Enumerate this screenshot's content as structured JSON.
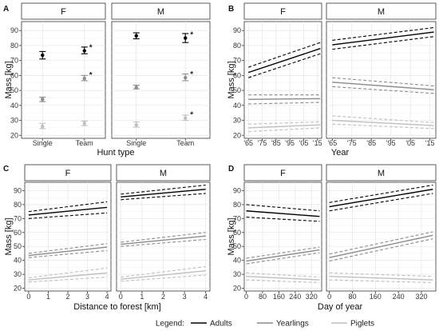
{
  "legend": {
    "title": "Legend:",
    "items": [
      {
        "label": "Adults",
        "color": "#000000"
      },
      {
        "label": "Yearlings",
        "color": "#8c8c8c"
      },
      {
        "label": "Piglets",
        "color": "#bfbfbf"
      }
    ]
  },
  "chart_data": [
    {
      "panel": "A",
      "type": "scatter",
      "facets": [
        "F",
        "M"
      ],
      "categories": [
        "Single",
        "Team"
      ],
      "xlabel": "Hunt type",
      "ylabel": "Mass [kg]",
      "ylim": [
        18,
        96
      ],
      "yticks": [
        20,
        30,
        40,
        50,
        60,
        70,
        80,
        90
      ],
      "grid": true,
      "series": [
        {
          "name": "Adults",
          "color": "#000000",
          "points": [
            {
              "facet": "F",
              "x": "Single",
              "y": 73.5,
              "lo": 71,
              "hi": 76,
              "sig": false
            },
            {
              "facet": "F",
              "x": "Team",
              "y": 76.5,
              "lo": 74.5,
              "hi": 79,
              "sig": true
            },
            {
              "facet": "M",
              "x": "Single",
              "y": 86.5,
              "lo": 84.5,
              "hi": 88.5,
              "sig": false
            },
            {
              "facet": "M",
              "x": "Team",
              "y": 85,
              "lo": 82,
              "hi": 88,
              "sig": true
            }
          ]
        },
        {
          "name": "Yearlings",
          "color": "#8c8c8c",
          "points": [
            {
              "facet": "F",
              "x": "Single",
              "y": 44,
              "lo": 42.5,
              "hi": 45.5,
              "sig": false
            },
            {
              "facet": "F",
              "x": "Team",
              "y": 58,
              "lo": 56.5,
              "hi": 60,
              "sig": true
            },
            {
              "facet": "M",
              "x": "Single",
              "y": 52,
              "lo": 51,
              "hi": 53.5,
              "sig": false
            },
            {
              "facet": "M",
              "x": "Team",
              "y": 58.5,
              "lo": 56.5,
              "hi": 61,
              "sig": true
            }
          ]
        },
        {
          "name": "Piglets",
          "color": "#bfbfbf",
          "points": [
            {
              "facet": "F",
              "x": "Single",
              "y": 26,
              "lo": 24.5,
              "hi": 28,
              "sig": false
            },
            {
              "facet": "F",
              "x": "Team",
              "y": 28,
              "lo": 26.5,
              "hi": 29.5,
              "sig": false
            },
            {
              "facet": "M",
              "x": "Single",
              "y": 27,
              "lo": 25.5,
              "hi": 29,
              "sig": false
            },
            {
              "facet": "M",
              "x": "Team",
              "y": 31.5,
              "lo": 30,
              "hi": 33.5,
              "sig": true
            }
          ]
        }
      ]
    },
    {
      "panel": "B",
      "type": "line",
      "facets": [
        "F",
        "M"
      ],
      "xlabel": "Year",
      "ylabel": "Mass [kg]",
      "xlim": [
        1962,
        2018
      ],
      "xticks": [
        1965,
        1975,
        1985,
        1995,
        2005,
        2015
      ],
      "xticklabels": [
        "'65",
        "'75",
        "'85",
        "'95",
        "'05",
        "'15"
      ],
      "ylim": [
        18,
        96
      ],
      "yticks": [
        20,
        30,
        40,
        50,
        60,
        70,
        80,
        90
      ],
      "grid": true,
      "series": [
        {
          "name": "Adults",
          "color": "#000000",
          "lines": [
            {
              "facet": "F",
              "x": [
                1965,
                2017
              ],
              "y": [
                62,
                78
              ],
              "lo": [
                58.5,
                74.5
              ],
              "hi": [
                65.5,
                82
              ]
            },
            {
              "facet": "M",
              "x": [
                1965,
                2017
              ],
              "y": [
                80.5,
                89
              ],
              "lo": [
                77.5,
                86
              ],
              "hi": [
                83.5,
                92
              ]
            }
          ]
        },
        {
          "name": "Yearlings",
          "color": "#8c8c8c",
          "lines": [
            {
              "facet": "F",
              "x": [
                1965,
                2017
              ],
              "y": [
                44,
                44.5
              ],
              "lo": [
                41,
                42
              ],
              "hi": [
                47,
                47
              ]
            },
            {
              "facet": "M",
              "x": [
                1965,
                2017
              ],
              "y": [
                55.5,
                50.5
              ],
              "lo": [
                52.5,
                48
              ],
              "hi": [
                58.5,
                53
              ]
            }
          ]
        },
        {
          "name": "Piglets",
          "color": "#bfbfbf",
          "lines": [
            {
              "facet": "F",
              "x": [
                1965,
                2017
              ],
              "y": [
                25,
                27
              ],
              "lo": [
                22.5,
                25
              ],
              "hi": [
                27.5,
                29
              ]
            },
            {
              "facet": "M",
              "x": [
                1965,
                2017
              ],
              "y": [
                30,
                26.5
              ],
              "lo": [
                27.5,
                24.5
              ],
              "hi": [
                33,
                28.5
              ]
            }
          ]
        }
      ]
    },
    {
      "panel": "C",
      "type": "line",
      "facets": [
        "F",
        "M"
      ],
      "xlabel": "Distance to forest [km]",
      "ylabel": "Mass [kg]",
      "xlim": [
        -0.2,
        4.2
      ],
      "xticks": [
        0,
        1,
        2,
        3,
        4
      ],
      "xticklabels": [
        "0",
        "1",
        "2",
        "3",
        "4"
      ],
      "ylim": [
        18,
        96
      ],
      "yticks": [
        20,
        30,
        40,
        50,
        60,
        70,
        80,
        90
      ],
      "grid": true,
      "series": [
        {
          "name": "Adults",
          "color": "#000000",
          "lines": [
            {
              "facet": "F",
              "x": [
                0,
                4
              ],
              "y": [
                72.5,
                78
              ],
              "lo": [
                70,
                74
              ],
              "hi": [
                75,
                82
              ]
            },
            {
              "facet": "M",
              "x": [
                0,
                4
              ],
              "y": [
                85.5,
                91
              ],
              "lo": [
                83.5,
                88
              ],
              "hi": [
                87.5,
                94
              ]
            }
          ]
        },
        {
          "name": "Yearlings",
          "color": "#8c8c8c",
          "lines": [
            {
              "facet": "F",
              "x": [
                0,
                4
              ],
              "y": [
                43.5,
                49.5
              ],
              "lo": [
                42,
                47
              ],
              "hi": [
                45,
                52
              ]
            },
            {
              "facet": "M",
              "x": [
                0,
                4
              ],
              "y": [
                51.5,
                57.5
              ],
              "lo": [
                50,
                55
              ],
              "hi": [
                53,
                60
              ]
            }
          ]
        },
        {
          "name": "Piglets",
          "color": "#bfbfbf",
          "lines": [
            {
              "facet": "F",
              "x": [
                0,
                4
              ],
              "y": [
                26,
                31
              ],
              "lo": [
                24.5,
                28
              ],
              "hi": [
                27.5,
                34.5
              ]
            },
            {
              "facet": "M",
              "x": [
                0,
                4
              ],
              "y": [
                26.5,
                32.5
              ],
              "lo": [
                25,
                29.5
              ],
              "hi": [
                28,
                35.5
              ]
            }
          ]
        }
      ]
    },
    {
      "panel": "D",
      "type": "line",
      "facets": [
        "F",
        "M"
      ],
      "xlabel": "Day of year",
      "ylabel": "Mass [kg]",
      "xlim": [
        -10,
        370
      ],
      "xticks": [
        0,
        80,
        160,
        240,
        320
      ],
      "xticklabels": [
        "0",
        "80",
        "160",
        "240",
        "320"
      ],
      "ylim": [
        18,
        96
      ],
      "yticks": [
        20,
        30,
        40,
        50,
        60,
        70,
        80,
        90
      ],
      "grid": true,
      "series": [
        {
          "name": "Adults",
          "color": "#000000",
          "lines": [
            {
              "facet": "F",
              "x": [
                0,
                360
              ],
              "y": [
                75.5,
                71.5
              ],
              "lo": [
                71,
                68
              ],
              "hi": [
                80,
                75.5
              ]
            },
            {
              "facet": "M",
              "x": [
                0,
                360
              ],
              "y": [
                78.5,
                91
              ],
              "lo": [
                75.5,
                88
              ],
              "hi": [
                81.5,
                94
              ]
            }
          ]
        },
        {
          "name": "Yearlings",
          "color": "#8c8c8c",
          "lines": [
            {
              "facet": "F",
              "x": [
                0,
                360
              ],
              "y": [
                39.5,
                47.5
              ],
              "lo": [
                37.5,
                45.5
              ],
              "hi": [
                41.5,
                49.5
              ]
            },
            {
              "facet": "M",
              "x": [
                0,
                360
              ],
              "y": [
                42,
                58
              ],
              "lo": [
                39.5,
                55.5
              ],
              "hi": [
                44.5,
                60.5
              ]
            }
          ]
        },
        {
          "name": "Piglets",
          "color": "#bfbfbf",
          "lines": [
            {
              "facet": "F",
              "x": [
                0,
                360
              ],
              "y": [
                28.5,
                26
              ],
              "lo": [
                26,
                24
              ],
              "hi": [
                31,
                28
              ]
            },
            {
              "facet": "M",
              "x": [
                0,
                360
              ],
              "y": [
                28.5,
                26
              ],
              "lo": [
                26,
                24
              ],
              "hi": [
                31,
                28.5
              ]
            }
          ]
        }
      ]
    }
  ]
}
